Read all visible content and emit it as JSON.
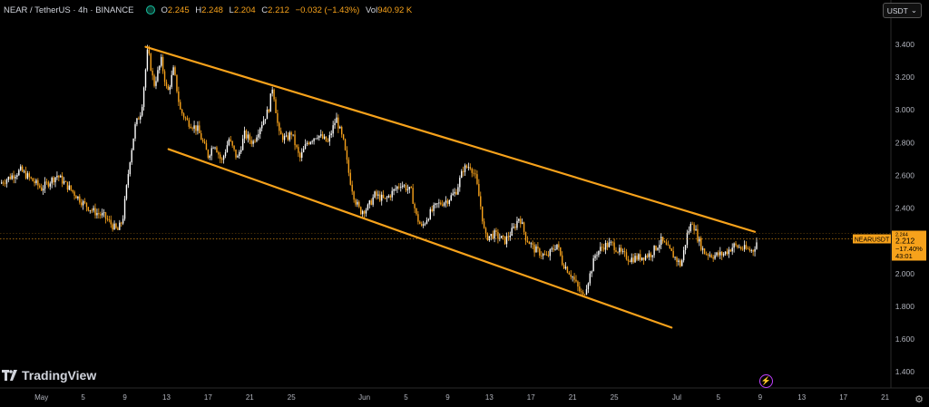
{
  "header": {
    "symbol": "NEAR / TetherUS · 4h · BINANCE",
    "ohlc": [
      {
        "k": "O",
        "v": "2.245"
      },
      {
        "k": "H",
        "v": "2.248"
      },
      {
        "k": "L",
        "v": "2.204"
      },
      {
        "k": "C",
        "v": "2.212"
      },
      {
        "k": "",
        "v": "−0.032 (−1.43%)"
      },
      {
        "k": "Vol",
        "v": "940.92 K"
      }
    ]
  },
  "currency_selector": "USDT",
  "brand": "TradingView",
  "price_tag": {
    "ticker": "NEARUSDT",
    "price": "2.212",
    "change": "−17.40%",
    "countdown": "43:01",
    "peek": "2.244"
  },
  "colors": {
    "accent": "#f7a21b",
    "background": "#000000",
    "up": "#ffffff",
    "down": "#f7a21b"
  },
  "chart_data": {
    "type": "candlestick",
    "title": "NEAR / TetherUS · 4h · BINANCE",
    "y_ticks": [
      "3.400",
      "3.200",
      "3.000",
      "2.800",
      "2.600",
      "2.400",
      "2.200",
      "2.000",
      "1.800",
      "1.600",
      "1.400"
    ],
    "ylim": [
      1.32,
      3.66
    ],
    "x_ticks": [
      "May",
      "5",
      "9",
      "13",
      "17",
      "21",
      "25",
      "Jun",
      "5",
      "9",
      "13",
      "17",
      "21",
      "25",
      "Jul",
      "5",
      "9",
      "13",
      "17",
      "21"
    ],
    "x_tick_days": [
      1,
      5,
      9,
      13,
      17,
      21,
      25,
      32,
      36,
      40,
      44,
      48,
      52,
      56,
      62,
      66,
      70,
      74,
      78,
      82
    ],
    "last_price": 2.212,
    "path": [
      [
        -3,
        2.55
      ],
      [
        -1,
        2.63
      ],
      [
        1,
        2.52
      ],
      [
        2.5,
        2.6
      ],
      [
        4,
        2.5
      ],
      [
        5,
        2.43
      ],
      [
        6,
        2.38
      ],
      [
        7,
        2.35
      ],
      [
        8.3,
        2.26
      ],
      [
        8.8,
        2.33
      ],
      [
        9.5,
        2.7
      ],
      [
        10,
        2.9
      ],
      [
        10.6,
        3.0
      ],
      [
        11.2,
        3.37
      ],
      [
        11.8,
        3.15
      ],
      [
        12.5,
        3.3
      ],
      [
        13.1,
        3.1
      ],
      [
        13.7,
        3.25
      ],
      [
        14.3,
        3.0
      ],
      [
        15,
        2.93
      ],
      [
        16,
        2.88
      ],
      [
        17,
        2.72
      ],
      [
        17.6,
        2.8
      ],
      [
        18.3,
        2.68
      ],
      [
        19,
        2.82
      ],
      [
        19.8,
        2.7
      ],
      [
        20.5,
        2.85
      ],
      [
        21.3,
        2.8
      ],
      [
        22,
        2.9
      ],
      [
        22.8,
        3.0
      ],
      [
        23.2,
        3.15
      ],
      [
        23.8,
        2.85
      ],
      [
        24.5,
        2.82
      ],
      [
        25,
        2.86
      ],
      [
        25.8,
        2.7
      ],
      [
        26.5,
        2.8
      ],
      [
        27.5,
        2.85
      ],
      [
        28.5,
        2.8
      ],
      [
        29.3,
        2.95
      ],
      [
        30,
        2.8
      ],
      [
        30.6,
        2.58
      ],
      [
        31.1,
        2.45
      ],
      [
        31.6,
        2.38
      ],
      [
        32.3,
        2.4
      ],
      [
        33,
        2.48
      ],
      [
        34,
        2.45
      ],
      [
        35.5,
        2.55
      ],
      [
        36.5,
        2.5
      ],
      [
        37,
        2.35
      ],
      [
        37.5,
        2.28
      ],
      [
        38.2,
        2.36
      ],
      [
        39,
        2.42
      ],
      [
        40,
        2.45
      ],
      [
        40.8,
        2.5
      ],
      [
        41.5,
        2.64
      ],
      [
        42.2,
        2.66
      ],
      [
        42.7,
        2.58
      ],
      [
        43.2,
        2.4
      ],
      [
        43.6,
        2.22
      ],
      [
        44.5,
        2.24
      ],
      [
        45.5,
        2.2
      ],
      [
        46.3,
        2.27
      ],
      [
        46.9,
        2.35
      ],
      [
        47.5,
        2.22
      ],
      [
        48.3,
        2.15
      ],
      [
        49.5,
        2.1
      ],
      [
        50.5,
        2.18
      ],
      [
        51,
        2.07
      ],
      [
        52,
        1.98
      ],
      [
        52.6,
        1.9
      ],
      [
        53,
        1.86
      ],
      [
        53.7,
        2.0
      ],
      [
        54.2,
        2.12
      ],
      [
        55,
        2.17
      ],
      [
        55.8,
        2.18
      ],
      [
        56.7,
        2.12
      ],
      [
        57.5,
        2.09
      ],
      [
        58.5,
        2.1
      ],
      [
        59.5,
        2.12
      ],
      [
        60.5,
        2.2
      ],
      [
        61.3,
        2.14
      ],
      [
        62.4,
        2.05
      ],
      [
        63,
        2.24
      ],
      [
        63.5,
        2.32
      ],
      [
        64,
        2.22
      ],
      [
        64.6,
        2.13
      ],
      [
        65.5,
        2.11
      ],
      [
        66.5,
        2.12
      ],
      [
        67.5,
        2.17
      ],
      [
        68.5,
        2.15
      ],
      [
        69.3,
        2.14
      ],
      [
        69.8,
        2.212
      ]
    ],
    "trendlines": [
      {
        "name": "upper",
        "from": [
          11,
          3.385
        ],
        "to": [
          69.5,
          2.255
        ]
      },
      {
        "name": "lower",
        "from": [
          13.2,
          2.76
        ],
        "to": [
          61.5,
          1.67
        ]
      }
    ]
  }
}
